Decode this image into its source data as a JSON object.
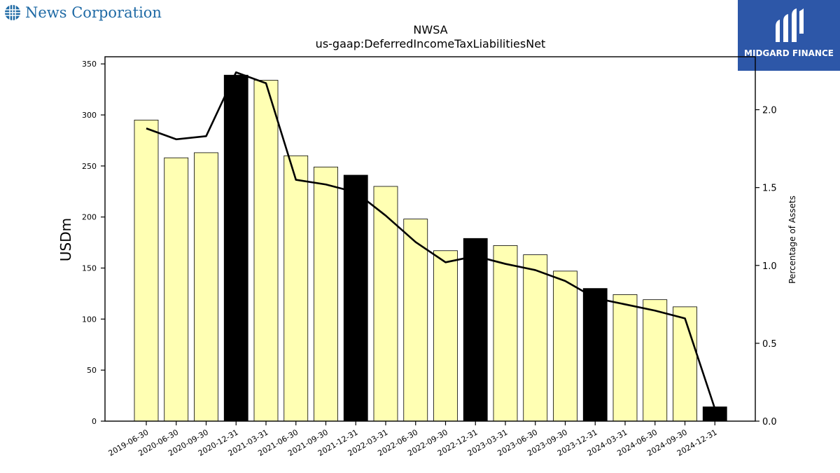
{
  "brand": {
    "name": "News Corporation",
    "icon": "globe-icon"
  },
  "logo": {
    "text": "MIDGARD FINANCE",
    "icon": "midgard-mark-icon"
  },
  "colors": {
    "bar_regular": "#ffffb3",
    "bar_highlight": "#000000",
    "line": "#000000",
    "brand_text": "#1f6aa5",
    "logo_bg": "#2d57a8"
  },
  "chart_data": {
    "type": "bar",
    "title": "NWSA",
    "subtitle": "us-gaap:DeferredIncomeTaxLiabilitiesNet",
    "ylabel": "USDm",
    "y2label": "Percentage of Assets",
    "ylim": [
      0,
      357
    ],
    "y2lim": [
      0,
      2.34
    ],
    "yticks": [
      0,
      50,
      100,
      150,
      200,
      250,
      300,
      350
    ],
    "y2ticks": [
      "0.0",
      "0.5",
      "1.0",
      "1.5",
      "2.0"
    ],
    "categories": [
      "2019-06-30",
      "2020-06-30",
      "2020-09-30",
      "2020-12-31",
      "2021-03-31",
      "2021-06-30",
      "2021-09-30",
      "2021-12-31",
      "2022-03-31",
      "2022-06-30",
      "2022-09-30",
      "2022-12-31",
      "2023-03-31",
      "2023-06-30",
      "2023-09-30",
      "2023-12-31",
      "2024-03-31",
      "2024-06-30",
      "2024-09-30",
      "2024-12-31"
    ],
    "series": [
      {
        "type": "bar",
        "values": [
          295,
          258,
          263,
          339,
          334,
          260,
          249,
          241,
          230,
          198,
          167,
          179,
          172,
          163,
          147,
          130,
          124,
          119,
          112,
          14
        ],
        "highlight": [
          false,
          false,
          false,
          true,
          false,
          false,
          false,
          true,
          false,
          false,
          false,
          true,
          false,
          false,
          false,
          true,
          false,
          false,
          false,
          true
        ]
      },
      {
        "type": "line",
        "axis": "right",
        "values": [
          1.88,
          1.81,
          1.83,
          2.24,
          2.17,
          1.55,
          1.52,
          1.47,
          1.32,
          1.15,
          1.02,
          1.06,
          1.01,
          0.97,
          0.9,
          0.79,
          0.75,
          0.71,
          0.66,
          0.08
        ]
      }
    ]
  }
}
